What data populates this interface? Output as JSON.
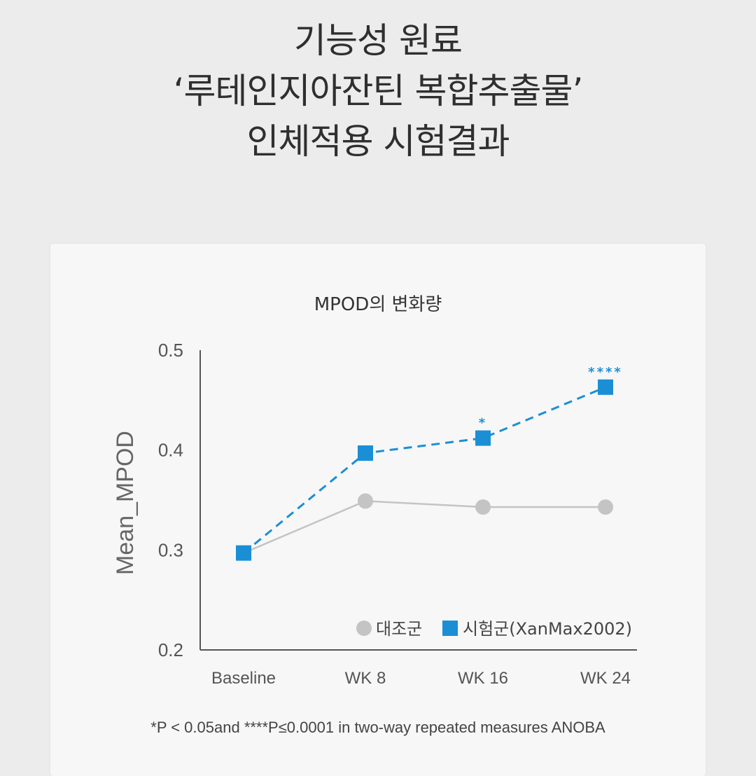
{
  "header": {
    "line1": "기능성 원료",
    "line2": "‘루테인지아잔틴 복합추출물’",
    "line3": "인체적용 시험결과"
  },
  "footnote": "*P < 0.05and ****P≤0.0001 in two-way repeated measures ANOBA",
  "chart_data": {
    "type": "line",
    "title": "MPOD의 변화량",
    "xlabel": "",
    "ylabel": "Mean_MPOD",
    "categories": [
      "Baseline",
      "WK 8",
      "WK 16",
      "WK 24"
    ],
    "ylim": [
      0.2,
      0.5
    ],
    "yticks": [
      "0.2",
      "0.3",
      "0.4",
      "0.5"
    ],
    "grid": false,
    "legend_position": "bottom-right",
    "series": [
      {
        "name": "대조군",
        "values": [
          0.297,
          0.349,
          0.343,
          0.343
        ],
        "marker": "circle",
        "line_style": "solid",
        "color": "#c4c4c4",
        "annotations": [
          "",
          "",
          "",
          ""
        ]
      },
      {
        "name": "시험군(XanMax2002)",
        "values": [
          0.297,
          0.397,
          0.412,
          0.463
        ],
        "marker": "square",
        "line_style": "dashed",
        "color": "#1a8fd6",
        "annotations": [
          "",
          "",
          "*",
          "****"
        ]
      }
    ]
  }
}
